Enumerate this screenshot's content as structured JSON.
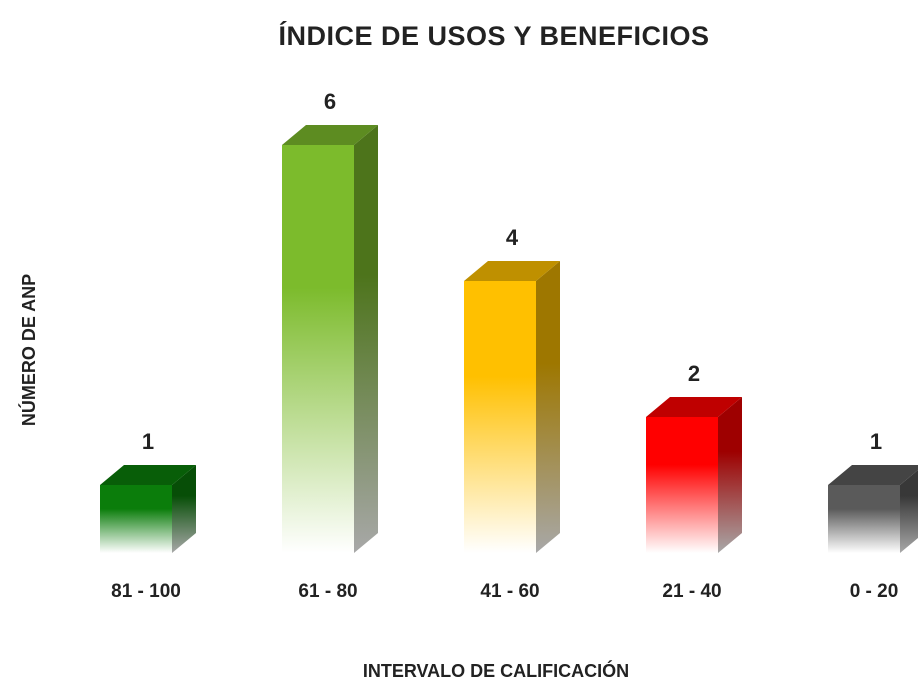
{
  "chart_data": {
    "type": "bar3d",
    "title": "ÍNDICE DE USOS Y BENEFICIOS",
    "x_label": "INTERVALO DE CALIFICACIÓN",
    "y_label": "NÚMERO DE ANP",
    "categories": [
      "81 - 100",
      "61 - 80",
      "41 - 60",
      "21 - 40",
      "0 - 20"
    ],
    "values": [
      1,
      6,
      4,
      2,
      1
    ],
    "colors": [
      "#0b7d0b",
      "#7cbb2c",
      "#ffc000",
      "#ff0000",
      "#5a5a5a"
    ]
  }
}
